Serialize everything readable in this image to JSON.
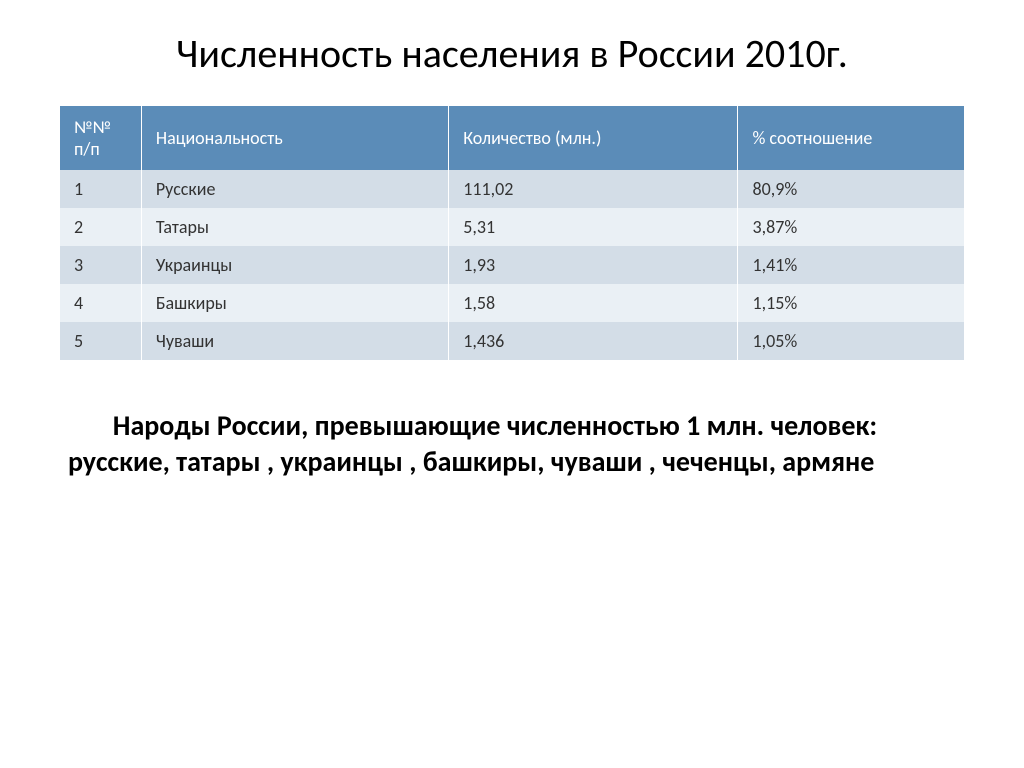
{
  "title": "Численность населения в России 2010г.",
  "table": {
    "header_bg": "#5b8cb8",
    "header_fg": "#ffffff",
    "row_odd_bg": "#d3dde7",
    "row_even_bg": "#eaf0f5",
    "columns": [
      {
        "key": "num",
        "label": "№№ п/п",
        "width": "9%"
      },
      {
        "key": "nat",
        "label": "Национальность",
        "width": "34%"
      },
      {
        "key": "qty",
        "label": "Количество (млн.)",
        "width": "32%"
      },
      {
        "key": "pct",
        "label": "% соотношение",
        "width": "25%"
      }
    ],
    "rows": [
      {
        "num": "1",
        "nat": "Русские",
        "qty": "111,02",
        "pct": "80,9%"
      },
      {
        "num": "2",
        "nat": "Татары",
        "qty": "5,31",
        "pct": "3,87%"
      },
      {
        "num": "3",
        "nat": "Украинцы",
        "qty": "1,93",
        "pct": "1,41%"
      },
      {
        "num": "4",
        "nat": "Башкиры",
        "qty": "1,58",
        "pct": "1,15%"
      },
      {
        "num": "5",
        "nat": "Чуваши",
        "qty": "1,436",
        "pct": "1,05%"
      }
    ]
  },
  "summary": "Народы России, превышающие численностью 1 млн. человек: русские, татары , украинцы , башкиры, чуваши , чеченцы, армяне",
  "typography": {
    "title_fontsize": 40,
    "table_fontsize": 18,
    "summary_fontsize": 28,
    "summary_weight": 700,
    "font_family": "Calibri"
  },
  "background_color": "#ffffff"
}
